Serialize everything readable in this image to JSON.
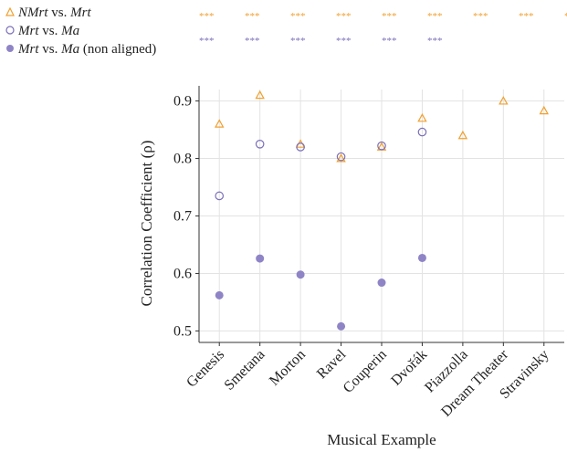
{
  "chart_data": {
    "type": "scatter",
    "categories": [
      "Genesis",
      "Smetana",
      "Morton",
      "Ravel",
      "Couperin",
      "Dvořák",
      "Piazzolla",
      "Dream Theater",
      "Stravinsky"
    ],
    "xlabel": "Musical Example",
    "ylabel": "Correlation Coefficient (ρ)",
    "ylim": [
      0.48,
      0.92
    ],
    "yticks": [
      "0.5",
      "0.6",
      "0.7",
      "0.8",
      "0.9"
    ],
    "grid": true,
    "legend_position": "top-left",
    "series": [
      {
        "key": "nmrt_mrt",
        "legend": [
          {
            "t": "NMrt",
            "i": true
          },
          {
            "t": " vs. ",
            "i": false
          },
          {
            "t": "Mrt",
            "i": true
          }
        ],
        "marker": "triangle-open",
        "color": "#f0a030",
        "values": [
          0.86,
          0.91,
          0.825,
          0.8,
          0.82,
          0.87,
          0.84,
          0.9,
          0.883
        ],
        "significance": [
          "***",
          "***",
          "***",
          "***",
          "***",
          "***",
          "***",
          "***",
          "***"
        ]
      },
      {
        "key": "mrt_ma",
        "legend": [
          {
            "t": "Mrt",
            "i": true
          },
          {
            "t": " vs. ",
            "i": false
          },
          {
            "t": "Ma",
            "i": true
          }
        ],
        "marker": "circle-open",
        "color": "#7b6fb8",
        "values": [
          0.735,
          0.825,
          0.82,
          0.803,
          0.822,
          0.846,
          null,
          null,
          null
        ],
        "significance": [
          "***",
          "***",
          "***",
          "***",
          "***",
          "***"
        ]
      },
      {
        "key": "mrt_ma_na",
        "legend": [
          {
            "t": "Mrt",
            "i": true
          },
          {
            "t": " vs. ",
            "i": false
          },
          {
            "t": "Ma",
            "i": true
          },
          {
            "t": " (non aligned)",
            "i": false
          }
        ],
        "marker": "circle-filled",
        "color": "#8f84c6",
        "values": [
          0.562,
          0.626,
          0.598,
          0.508,
          0.584,
          0.627,
          null,
          null,
          null
        ],
        "significance": []
      }
    ]
  }
}
